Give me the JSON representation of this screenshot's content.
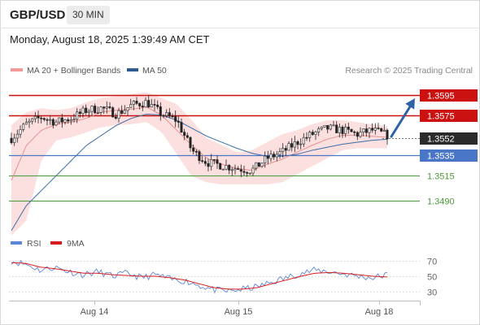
{
  "header": {
    "pair": "GBP/USD",
    "timeframe": "30 MIN",
    "datetime": "Monday, August 18, 2025 1:39:49 AM CET"
  },
  "legend": {
    "ma20": "MA 20 + Bollinger Bands",
    "ma50": "MA 50",
    "copyright": "Research © 2025 Trading Central",
    "rsi": "RSI",
    "rsi_ma": "9MA"
  },
  "colors": {
    "resistance": "#cc1111",
    "support_current": "#4a76c8",
    "support_other": "#4a9a3a",
    "price_box": "#2b2b2b",
    "bollinger_fill": "#fcdcdc",
    "ma20": "#e89090",
    "ma50": "#3a6ea8",
    "rsi_line": "#5b86d6",
    "rsi_ma_line": "#d81b1b",
    "arrow": "#2d62a8",
    "candle_up": "#ffffff",
    "candle_down": "#222222"
  },
  "chart_data": [
    {
      "type": "candlestick",
      "title": "",
      "y_axis_position": "right",
      "ylim": [
        1.3455,
        1.3612
      ],
      "x_tick_labels": [
        "Aug 14",
        "Aug 15",
        "Aug 18"
      ],
      "levels": [
        {
          "value": 1.3595,
          "label": "1.3595",
          "kind": "resistance",
          "boxed": true
        },
        {
          "value": 1.3575,
          "label": "1.3575",
          "kind": "resistance",
          "boxed": true
        },
        {
          "value": 1.3552,
          "label": "1.3552",
          "kind": "current",
          "boxed": true
        },
        {
          "value": 1.3535,
          "label": "1.3535",
          "kind": "support",
          "boxed": true
        },
        {
          "value": 1.3515,
          "label": "1.3515",
          "kind": "support2",
          "boxed": false
        },
        {
          "value": 1.349,
          "label": "1.3490",
          "kind": "support3",
          "boxed": false
        }
      ],
      "close_anchors": [
        1.3552,
        1.3566,
        1.3573,
        1.3568,
        1.3572,
        1.358,
        1.3582,
        1.3576,
        1.3585,
        1.3588,
        1.3576,
        1.357,
        1.354,
        1.3528,
        1.3525,
        1.3522,
        1.352,
        1.3532,
        1.3538,
        1.3548,
        1.3556,
        1.3562,
        1.356,
        1.3556,
        1.356,
        1.3555
      ],
      "candle_count": 127,
      "ma20_anchors": [
        1.351,
        1.3545,
        1.356,
        1.3566,
        1.3568,
        1.3572,
        1.3578,
        1.358,
        1.3581,
        1.3583,
        1.3575,
        1.356,
        1.3545,
        1.3532,
        1.3526,
        1.3522,
        1.352,
        1.3526,
        1.3531,
        1.3538,
        1.3545,
        1.3551,
        1.3555,
        1.3555,
        1.3554,
        1.3553
      ],
      "ma50_anchors": [
        1.346,
        1.3485,
        1.35,
        1.3515,
        1.353,
        1.3545,
        1.3555,
        1.3565,
        1.3572,
        1.3576,
        1.3575,
        1.357,
        1.3562,
        1.3554,
        1.3548,
        1.3542,
        1.3537,
        1.3534,
        1.3534,
        1.3536,
        1.354,
        1.3543,
        1.3546,
        1.3548,
        1.355,
        1.3551
      ],
      "bollinger_upper_anchors": [
        1.3565,
        1.3578,
        1.3582,
        1.358,
        1.3582,
        1.3588,
        1.3592,
        1.3594,
        1.3596,
        1.3598,
        1.3592,
        1.3586,
        1.357,
        1.3552,
        1.3545,
        1.3538,
        1.354,
        1.3548,
        1.3556,
        1.356,
        1.3566,
        1.357,
        1.357,
        1.3568,
        1.3566,
        1.3564
      ],
      "bollinger_lower_anchors": [
        1.3455,
        1.347,
        1.353,
        1.355,
        1.3553,
        1.3558,
        1.3563,
        1.3565,
        1.3566,
        1.3568,
        1.3558,
        1.3536,
        1.3514,
        1.3508,
        1.3506,
        1.3506,
        1.3506,
        1.3506,
        1.3508,
        1.3516,
        1.3524,
        1.3532,
        1.354,
        1.3542,
        1.3542,
        1.3542
      ],
      "projection": {
        "from": 1.3552,
        "to": 1.3595
      }
    },
    {
      "type": "line",
      "title": "RSI",
      "ylim": [
        20,
        80
      ],
      "y_ticks": [
        70,
        50,
        30
      ],
      "series": [
        {
          "name": "RSI",
          "anchors": [
            70,
            66,
            58,
            62,
            56,
            52,
            56,
            50,
            54,
            48,
            52,
            46,
            44,
            38,
            32,
            30,
            33,
            36,
            42,
            48,
            54,
            58,
            56,
            53,
            50,
            48,
            52
          ]
        },
        {
          "name": "9MA",
          "anchors": [
            68,
            67,
            62,
            60,
            57,
            54,
            54,
            52,
            51,
            50,
            50,
            48,
            45,
            40,
            35,
            33,
            33,
            35,
            40,
            45,
            50,
            54,
            55,
            54,
            52,
            50,
            49
          ]
        }
      ]
    }
  ]
}
